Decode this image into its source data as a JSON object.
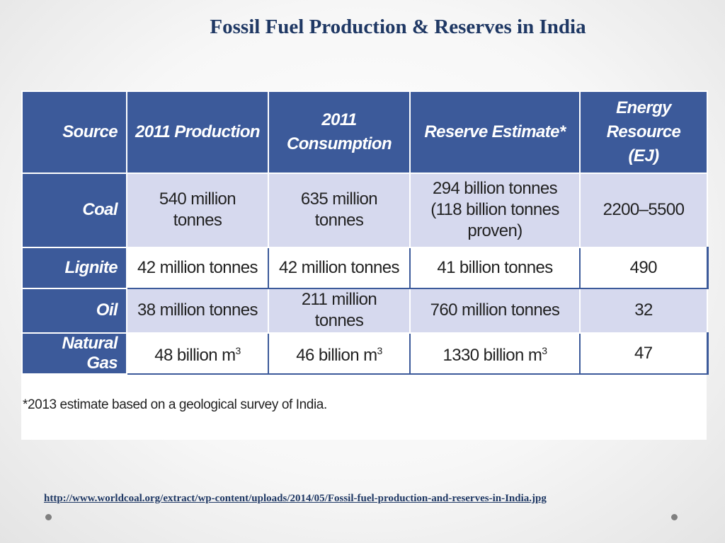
{
  "slide": {
    "title": "Fossil Fuel Production & Reserves in India",
    "link": "http://www.worldcoal.org/extract/wp-content/uploads/2014/05/Fossil-fuel-production-and-reserves-in-India.jpg"
  },
  "table": {
    "headers": {
      "source": "Source",
      "production": "2011 Production",
      "consumption": "2011 Consumption",
      "reserve": "Reserve Estimate*",
      "energy_line1": "Energy Resource",
      "energy_line2": "(EJ)"
    },
    "rows": [
      {
        "source": "Coal",
        "production": "540 million tonnes",
        "consumption": "635 million tonnes",
        "reserve_line1": "294 billion tonnes",
        "reserve_line2": "(118 billion tonnes proven)",
        "energy": "2200–5500"
      },
      {
        "source": "Lignite",
        "production": "42 million tonnes",
        "consumption": "42 million tonnes",
        "reserve": "41 billion tonnes",
        "energy": "490"
      },
      {
        "source": "Oil",
        "production": "38 million tonnes",
        "consumption": "211 million tonnes",
        "reserve": "760 million tonnes",
        "energy": "32"
      },
      {
        "source": "Natural Gas",
        "production": "48 billion m",
        "consumption": "46 billion m",
        "reserve": "1330 billion m",
        "unit_exponent": "3",
        "energy": "47"
      }
    ],
    "footnote": "*2013 estimate based on a geological survey of India."
  },
  "colors": {
    "header_blue": "#3c5a9a",
    "row_shade": "#d6d9ee",
    "title": "#1f3864"
  }
}
